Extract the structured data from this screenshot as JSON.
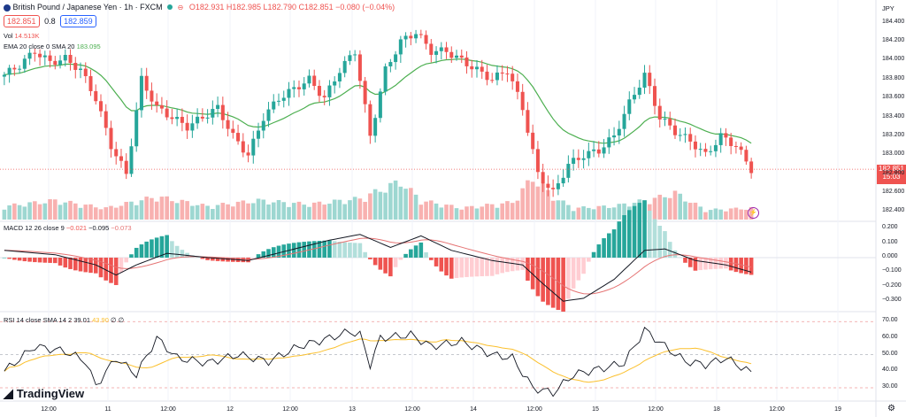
{
  "header": {
    "title": "British Pound / Japanese Yen · 1h · FXCM",
    "ohlc": {
      "o": "O182.931",
      "h": "H182.985",
      "l": "L182.790",
      "c": "C182.851",
      "chg": "−0.080 (−0.04%)"
    },
    "bid": "182.851",
    "spread": "0.8",
    "ask": "182.859",
    "currency": "JPY"
  },
  "indicators": {
    "vol_label": "Vol",
    "vol_value": "14.513K",
    "ema_label": "EMA 20 close 0 SMA 20",
    "ema_value": "183.095",
    "macd_label": "MACD 12 26 close 9",
    "macd_v1": "−0.021",
    "macd_v2": "−0.095",
    "macd_v3": "−0.073",
    "rsi_label": "RSI 14 close SMA 14 2",
    "rsi_v1": "39.01",
    "rsi_v2": "43.90",
    "rsi_v3": "∅ ∅"
  },
  "price_badge": {
    "value": "182.851",
    "countdown": "15:03"
  },
  "logo": "TradingView",
  "colors": {
    "up": "#26a69a",
    "down": "#ef5350",
    "ema": "#4caf50",
    "macd": "#131722",
    "signal": "#e57373",
    "rsi": "#131722",
    "rsi_sma": "#fbc02d"
  },
  "chart_data": {
    "type": "candlestick",
    "price_axis": {
      "ticks": [
        "184.400",
        "184.200",
        "184.000",
        "183.800",
        "183.600",
        "183.400",
        "183.200",
        "183.000",
        "182.800",
        "182.600",
        "182.400"
      ],
      "ylim": [
        182.3,
        184.5
      ]
    },
    "macd_axis": {
      "ticks": [
        "0.200",
        "0.100",
        "0.000",
        "−0.100",
        "−0.200",
        "−0.300"
      ],
      "ylim": [
        -0.36,
        0.25
      ]
    },
    "rsi_axis": {
      "ticks": [
        "70.00",
        "60.00",
        "50.00",
        "40.00",
        "30.00"
      ],
      "ylim": [
        22,
        76
      ],
      "bands": [
        70,
        50,
        30
      ]
    },
    "time_axis": [
      "12:00",
      "11",
      "12:00",
      "12",
      "12:00",
      "13",
      "12:00",
      "14",
      "12:00",
      "15",
      "12:00",
      "18",
      "12:00",
      "19"
    ],
    "close_keypoints": [
      [
        0,
        183.85
      ],
      [
        3,
        183.95
      ],
      [
        6,
        184.1
      ],
      [
        9,
        183.98
      ],
      [
        12,
        184.02
      ],
      [
        15,
        183.9
      ],
      [
        18,
        183.6
      ],
      [
        21,
        183.1
      ],
      [
        24,
        182.8
      ],
      [
        27,
        183.8
      ],
      [
        30,
        183.5
      ],
      [
        33,
        183.4
      ],
      [
        36,
        183.3
      ],
      [
        39,
        183.4
      ],
      [
        42,
        183.5
      ],
      [
        45,
        183.2
      ],
      [
        48,
        183.0
      ],
      [
        51,
        183.4
      ],
      [
        54,
        183.6
      ],
      [
        57,
        183.7
      ],
      [
        60,
        183.8
      ],
      [
        63,
        183.6
      ],
      [
        66,
        183.9
      ],
      [
        69,
        184.1
      ],
      [
        72,
        183.2
      ],
      [
        75,
        183.9
      ],
      [
        78,
        184.2
      ],
      [
        81,
        184.3
      ],
      [
        84,
        184.1
      ],
      [
        87,
        184.1
      ],
      [
        90,
        184.0
      ],
      [
        93,
        183.9
      ],
      [
        96,
        183.8
      ],
      [
        99,
        183.9
      ],
      [
        102,
        183.5
      ],
      [
        105,
        182.8
      ],
      [
        108,
        182.6
      ],
      [
        111,
        182.9
      ],
      [
        114,
        183.0
      ],
      [
        117,
        183.05
      ],
      [
        120,
        183.2
      ],
      [
        123,
        183.55
      ],
      [
        126,
        183.85
      ],
      [
        129,
        183.4
      ],
      [
        132,
        183.25
      ],
      [
        135,
        183.15
      ],
      [
        138,
        183.0
      ],
      [
        141,
        183.2
      ],
      [
        144,
        183.1
      ],
      [
        147,
        182.85
      ]
    ],
    "volume_keypoints": [
      [
        0,
        0.35
      ],
      [
        10,
        0.5
      ],
      [
        20,
        0.3
      ],
      [
        30,
        0.6
      ],
      [
        40,
        0.35
      ],
      [
        50,
        0.5
      ],
      [
        60,
        0.4
      ],
      [
        70,
        0.55
      ],
      [
        78,
        1.0
      ],
      [
        82,
        0.5
      ],
      [
        90,
        0.3
      ],
      [
        100,
        0.45
      ],
      [
        104,
        1.1
      ],
      [
        108,
        0.6
      ],
      [
        112,
        0.3
      ],
      [
        120,
        0.35
      ],
      [
        128,
        0.55
      ],
      [
        132,
        0.7
      ],
      [
        138,
        0.25
      ],
      [
        147,
        0.3
      ]
    ],
    "macd_keypoints": [
      [
        0,
        0.05
      ],
      [
        10,
        0.02
      ],
      [
        18,
        -0.05
      ],
      [
        22,
        -0.12
      ],
      [
        26,
        -0.05
      ],
      [
        32,
        0.03
      ],
      [
        40,
        0.0
      ],
      [
        48,
        -0.02
      ],
      [
        56,
        0.05
      ],
      [
        64,
        0.12
      ],
      [
        70,
        0.16
      ],
      [
        76,
        0.07
      ],
      [
        82,
        0.15
      ],
      [
        88,
        0.05
      ],
      [
        96,
        -0.02
      ],
      [
        102,
        -0.05
      ],
      [
        106,
        -0.18
      ],
      [
        110,
        -0.3
      ],
      [
        114,
        -0.28
      ],
      [
        120,
        -0.15
      ],
      [
        126,
        0.05
      ],
      [
        130,
        0.06
      ],
      [
        136,
        -0.02
      ],
      [
        142,
        -0.05
      ],
      [
        147,
        -0.1
      ]
    ],
    "rsi_keypoints": [
      [
        0,
        40
      ],
      [
        6,
        55
      ],
      [
        12,
        52
      ],
      [
        16,
        46
      ],
      [
        18,
        31
      ],
      [
        22,
        48
      ],
      [
        26,
        38
      ],
      [
        30,
        60
      ],
      [
        34,
        48
      ],
      [
        40,
        45
      ],
      [
        46,
        50
      ],
      [
        52,
        46
      ],
      [
        58,
        55
      ],
      [
        64,
        60
      ],
      [
        68,
        64
      ],
      [
        70,
        62
      ],
      [
        72,
        44
      ],
      [
        74,
        60
      ],
      [
        80,
        62
      ],
      [
        84,
        55
      ],
      [
        90,
        58
      ],
      [
        96,
        50
      ],
      [
        100,
        48
      ],
      [
        104,
        30
      ],
      [
        108,
        27
      ],
      [
        112,
        38
      ],
      [
        118,
        42
      ],
      [
        122,
        45
      ],
      [
        126,
        65
      ],
      [
        130,
        55
      ],
      [
        134,
        46
      ],
      [
        138,
        44
      ],
      [
        142,
        48
      ],
      [
        147,
        39
      ]
    ]
  }
}
